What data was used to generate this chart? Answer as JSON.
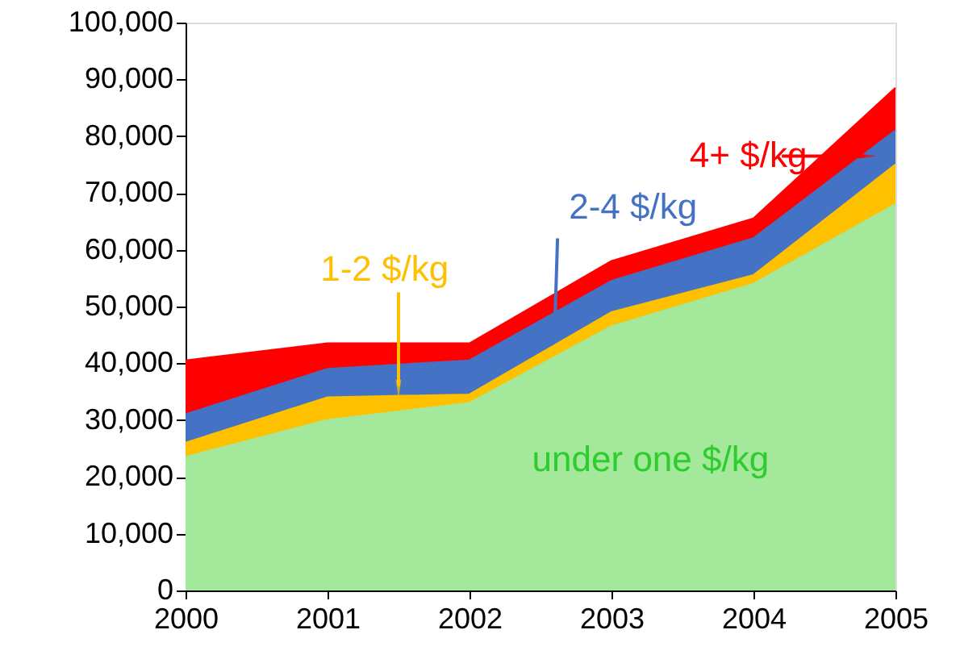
{
  "chart_data": {
    "type": "area",
    "stacked": true,
    "x": [
      2000,
      2001,
      2002,
      2003,
      2004,
      2005
    ],
    "series": [
      {
        "name": "under one $/kg",
        "color": "#a3e89b",
        "values": [
          23500,
          30000,
          33000,
          46500,
          54000,
          68000
        ]
      },
      {
        "name": "1-2 $/kg",
        "color": "#ffc000",
        "values": [
          2500,
          4000,
          1500,
          2500,
          1500,
          7000
        ]
      },
      {
        "name": "2-4 $/kg",
        "color": "#4472c4",
        "values": [
          5000,
          5000,
          6000,
          5500,
          6500,
          6000
        ]
      },
      {
        "name": "4+ $/kg",
        "color": "#ff0000",
        "values": [
          9500,
          4500,
          3000,
          3500,
          3500,
          7500
        ]
      }
    ],
    "xlim": [
      2000,
      2005
    ],
    "xticks": [
      2000,
      2001,
      2002,
      2003,
      2004,
      2005
    ],
    "ylim": [
      0,
      100000
    ],
    "yticks": [
      0,
      {
        "value": 10000,
        "label": "10,000"
      },
      {
        "value": 20000,
        "label": "20,000"
      },
      {
        "value": 30000,
        "label": "30,000"
      },
      {
        "value": 40000,
        "label": "40,000"
      },
      {
        "value": 50000,
        "label": "50,000"
      },
      {
        "value": 60000,
        "label": "60,000"
      },
      {
        "value": 70000,
        "label": "70,000"
      },
      {
        "value": 80000,
        "label": "80,000"
      },
      {
        "value": 90000,
        "label": "90,000"
      },
      {
        "value": 100000,
        "label": "100,000"
      }
    ],
    "grid": false
  }
}
